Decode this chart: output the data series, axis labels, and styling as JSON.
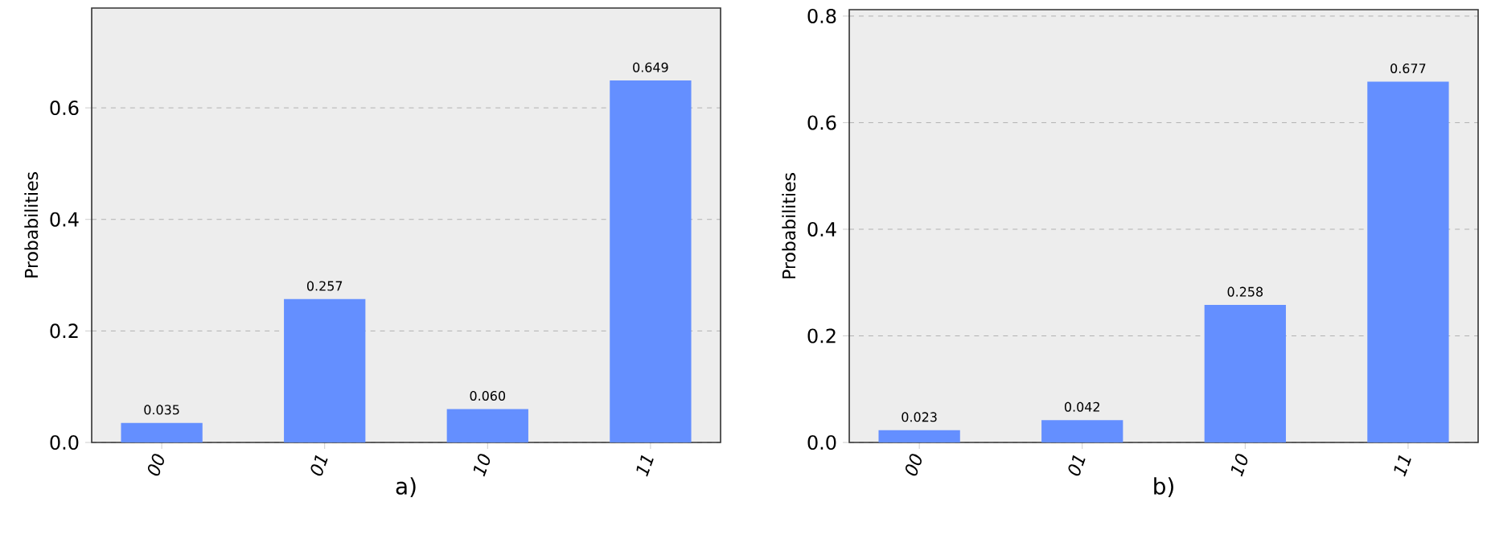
{
  "chart_data": [
    {
      "type": "bar",
      "xlabel": "a)",
      "ylabel": "Probabilities",
      "categories": [
        "00",
        "01",
        "10",
        "11"
      ],
      "values": [
        0.035,
        0.257,
        0.06,
        0.649
      ],
      "color": "#648fff",
      "ylim": [
        0,
        0.779
      ],
      "yticks": [
        {
          "value": 0,
          "label": "0.0"
        },
        0.2,
        0.4,
        0.6
      ],
      "grid": "y",
      "data_labels": true,
      "value_labels": [
        "0.035",
        "0.257",
        "0.060",
        "0.649"
      ]
    },
    {
      "type": "bar",
      "xlabel": "b)",
      "ylabel": "Probabilities",
      "categories": [
        "00",
        "01",
        "10",
        "11"
      ],
      "values": [
        0.023,
        0.042,
        0.258,
        0.677
      ],
      "color": "#648fff",
      "ylim": [
        0,
        0.812
      ],
      "yticks": [
        {
          "value": 0,
          "label": "0.0"
        },
        0.2,
        0.4,
        0.6,
        0.8
      ],
      "grid": "y",
      "data_labels": true,
      "value_labels": [
        "0.023",
        "0.042",
        "0.258",
        "0.677"
      ]
    }
  ]
}
